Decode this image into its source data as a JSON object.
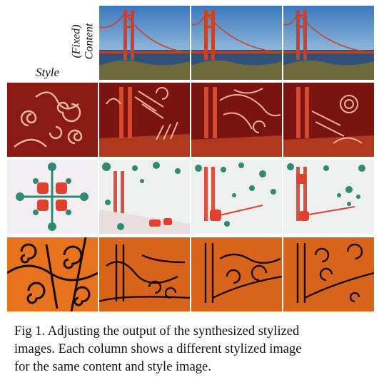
{
  "figure": {
    "content_label_line1": "(Fixed)",
    "content_label_line2": "Content",
    "style_label": "Style",
    "rows": [
      {
        "name": "content",
        "tiles": [
          "golden-gate-bridge",
          "golden-gate-bridge",
          "golden-gate-bridge"
        ]
      },
      {
        "name": "style-swirl-red",
        "tiles": [
          "swirl-red-style",
          "stylized-red-1",
          "stylized-red-2",
          "stylized-red-3"
        ]
      },
      {
        "name": "style-green-red-pattern",
        "tiles": [
          "pattern-style",
          "stylized-pattern-1",
          "stylized-pattern-2",
          "stylized-pattern-3"
        ]
      },
      {
        "name": "style-orange-swirl",
        "tiles": [
          "orange-swirl-style",
          "stylized-orange-1",
          "stylized-orange-2",
          "stylized-orange-3"
        ]
      }
    ],
    "colors": {
      "sky": "#3f7fc0",
      "bridge": "#c8432a",
      "dark_red": "#7a1410",
      "teal": "#2f8a75",
      "pattern_red": "#e04030",
      "orange": "#e8731f",
      "black": "#1a0c05"
    }
  },
  "caption": {
    "line1": "Fig 1. Adjusting the output of the synthesized stylized",
    "line2": "images. Each column shows a different stylized image",
    "line3": "for the same content and style image."
  }
}
